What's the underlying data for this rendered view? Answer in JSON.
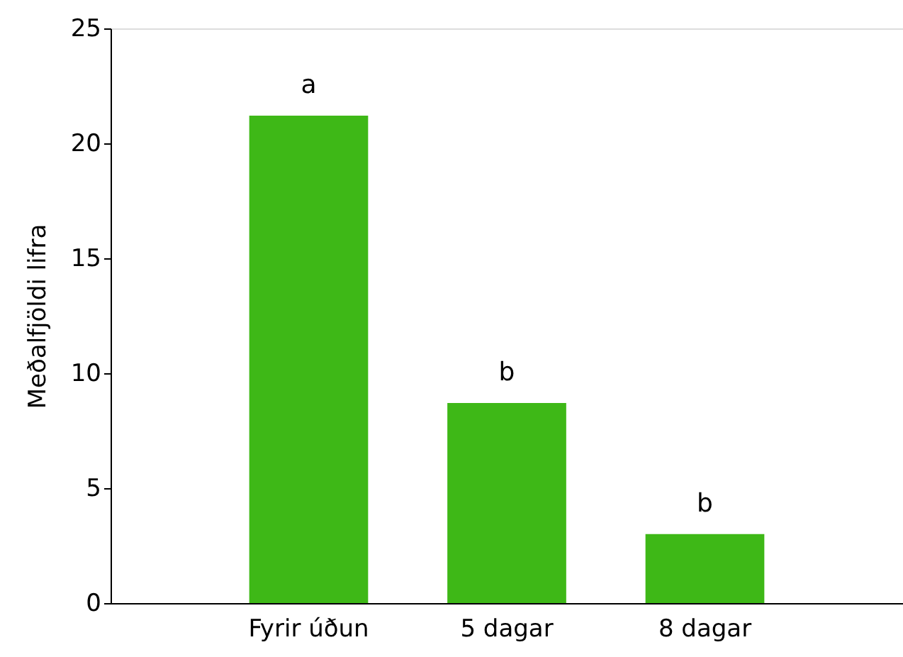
{
  "chart_data": {
    "type": "bar",
    "ylabel": "Meðalfjöldi lifra",
    "categories": [
      "Fyrir úðun",
      "5 dagar",
      "8 dagar"
    ],
    "values": [
      21.2,
      8.7,
      3.0
    ],
    "color": "#3eb817",
    "ylim": [
      0,
      25
    ],
    "yticks": [
      0,
      5,
      10,
      15,
      20,
      25
    ],
    "grid": false,
    "annotations": [
      {
        "text": "a",
        "x": "Fyrir úðun",
        "y": 21.2
      },
      {
        "text": "b",
        "x": "5 dagar",
        "y": 8.7
      },
      {
        "text": "b",
        "x": "8 dagar",
        "y": 3.0
      }
    ]
  }
}
